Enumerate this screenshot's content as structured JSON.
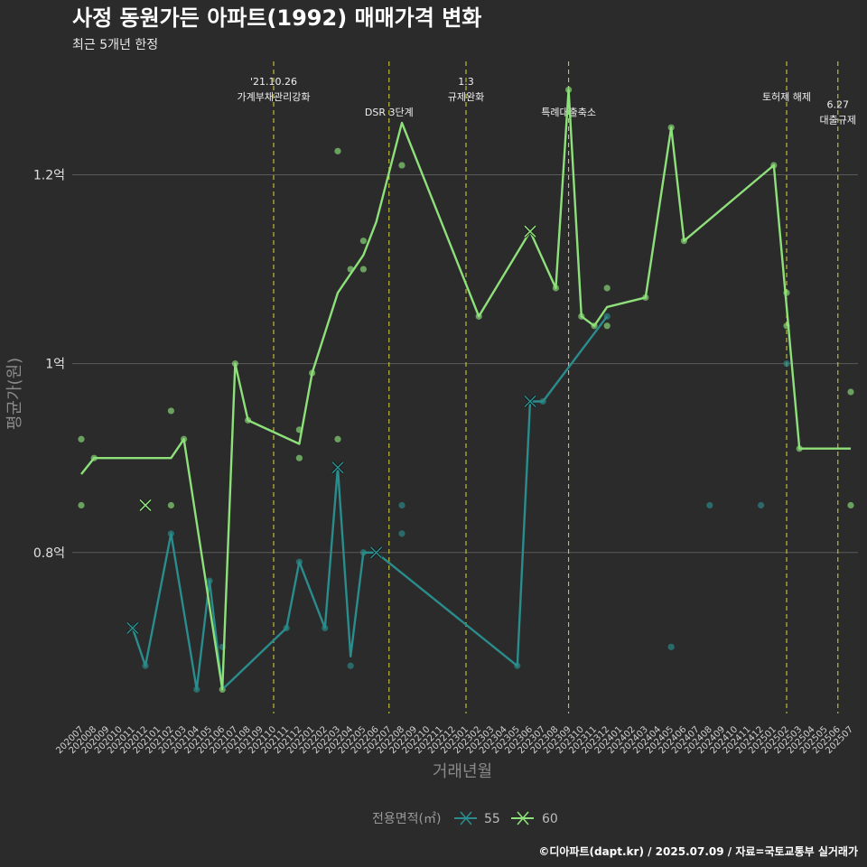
{
  "chart_data": {
    "type": "line",
    "title": "사정 동원가든 아파트(1992) 매매가격 변화",
    "subtitle": "최근 5개년 한정",
    "xlabel": "거래년월",
    "ylabel": "평균가(원)",
    "ylim": [
      0.62,
      1.32
    ],
    "yticks": [
      {
        "value": 0.8,
        "label": "0.8억"
      },
      {
        "value": 1.0,
        "label": "1억"
      },
      {
        "value": 1.2,
        "label": "1.2억"
      }
    ],
    "categories": [
      "202007",
      "202008",
      "202009",
      "202010",
      "202011",
      "202012",
      "202101",
      "202102",
      "202103",
      "202104",
      "202105",
      "202106",
      "202107",
      "202108",
      "202109",
      "202110",
      "202111",
      "202112",
      "202201",
      "202202",
      "202203",
      "202204",
      "202205",
      "202206",
      "202207",
      "202208",
      "202209",
      "202210",
      "202211",
      "202212",
      "202301",
      "202302",
      "202303",
      "202304",
      "202305",
      "202306",
      "202307",
      "202308",
      "202309",
      "202310",
      "202311",
      "202312",
      "202401",
      "202402",
      "202403",
      "202404",
      "202405",
      "202406",
      "202407",
      "202408",
      "202409",
      "202410",
      "202411",
      "202412",
      "202501",
      "202502",
      "202503",
      "202504",
      "202505",
      "202506",
      "202507"
    ],
    "legend": {
      "title": "전용면적(㎡)",
      "position": "bottom"
    },
    "grid": true,
    "series": [
      {
        "name": "55",
        "color": "#2a8c8c",
        "line": [
          {
            "x": "202011",
            "y": 0.72
          },
          {
            "x": "202012",
            "y": 0.68
          },
          {
            "x": "202102",
            "y": 0.82
          },
          {
            "x": "202104",
            "y": 0.655
          },
          {
            "x": "202105",
            "y": 0.77
          },
          {
            "x": "202106",
            "y": 0.655
          },
          {
            "x": "202111",
            "y": 0.72
          },
          {
            "x": "202112",
            "y": 0.79
          },
          {
            "x": "202202",
            "y": 0.72
          },
          {
            "x": "202203",
            "y": 0.89
          },
          {
            "x": "202204",
            "y": 0.69
          },
          {
            "x": "202205",
            "y": 0.8
          },
          {
            "x": "202206",
            "y": 0.8
          },
          {
            "x": "202305",
            "y": 0.68
          },
          {
            "x": "202306",
            "y": 0.96
          },
          {
            "x": "202307",
            "y": 0.96
          },
          {
            "x": "202312",
            "y": 1.05
          }
        ],
        "points": [
          {
            "x": "202011",
            "y": 0.72
          },
          {
            "x": "202012",
            "y": 0.68
          },
          {
            "x": "202102",
            "y": 0.82
          },
          {
            "x": "202104",
            "y": 0.655
          },
          {
            "x": "202105",
            "y": 0.77
          },
          {
            "x": "202106",
            "y": 0.7
          },
          {
            "x": "202111",
            "y": 0.72
          },
          {
            "x": "202112",
            "y": 0.79
          },
          {
            "x": "202202",
            "y": 0.72
          },
          {
            "x": "202204",
            "y": 0.68
          },
          {
            "x": "202205",
            "y": 0.8
          },
          {
            "x": "202208",
            "y": 0.85
          },
          {
            "x": "202208",
            "y": 0.82
          },
          {
            "x": "202305",
            "y": 0.68
          },
          {
            "x": "202307",
            "y": 0.96
          },
          {
            "x": "202312",
            "y": 1.05
          },
          {
            "x": "202405",
            "y": 0.7
          },
          {
            "x": "202408",
            "y": 0.85
          },
          {
            "x": "202412",
            "y": 0.85
          },
          {
            "x": "202502",
            "y": 1.0
          }
        ],
        "crosses": [
          {
            "x": "202011",
            "y": 0.72
          },
          {
            "x": "202203",
            "y": 0.89
          },
          {
            "x": "202206",
            "y": 0.8
          },
          {
            "x": "202306",
            "y": 0.96
          }
        ]
      },
      {
        "name": "60",
        "color": "#8ee07a",
        "line": [
          {
            "x": "202007",
            "y": 0.883
          },
          {
            "x": "202008",
            "y": 0.9
          },
          {
            "x": "202102",
            "y": 0.9
          },
          {
            "x": "202103",
            "y": 0.92
          },
          {
            "x": "202106",
            "y": 0.655
          },
          {
            "x": "202107",
            "y": 1.0
          },
          {
            "x": "202108",
            "y": 0.94
          },
          {
            "x": "202112",
            "y": 0.915
          },
          {
            "x": "202201",
            "y": 0.99
          },
          {
            "x": "202203",
            "y": 1.075
          },
          {
            "x": "202205",
            "y": 1.115
          },
          {
            "x": "202206",
            "y": 1.15
          },
          {
            "x": "202208",
            "y": 1.255
          },
          {
            "x": "202302",
            "y": 1.05
          },
          {
            "x": "202306",
            "y": 1.14
          },
          {
            "x": "202308",
            "y": 1.08
          },
          {
            "x": "202309",
            "y": 1.29
          },
          {
            "x": "202310",
            "y": 1.05
          },
          {
            "x": "202311",
            "y": 1.04
          },
          {
            "x": "202312",
            "y": 1.06
          },
          {
            "x": "202403",
            "y": 1.07
          },
          {
            "x": "202405",
            "y": 1.25
          },
          {
            "x": "202406",
            "y": 1.13
          },
          {
            "x": "202501",
            "y": 1.21
          },
          {
            "x": "202503",
            "y": 0.91
          },
          {
            "x": "202507",
            "y": 0.91
          }
        ],
        "points": [
          {
            "x": "202007",
            "y": 0.92
          },
          {
            "x": "202007",
            "y": 0.85
          },
          {
            "x": "202008",
            "y": 0.9
          },
          {
            "x": "202102",
            "y": 0.95
          },
          {
            "x": "202102",
            "y": 0.85
          },
          {
            "x": "202103",
            "y": 0.92
          },
          {
            "x": "202106",
            "y": 0.655
          },
          {
            "x": "202107",
            "y": 1.0
          },
          {
            "x": "202108",
            "y": 0.94
          },
          {
            "x": "202112",
            "y": 0.93
          },
          {
            "x": "202112",
            "y": 0.9
          },
          {
            "x": "202201",
            "y": 0.99
          },
          {
            "x": "202203",
            "y": 1.225
          },
          {
            "x": "202203",
            "y": 0.92
          },
          {
            "x": "202204",
            "y": 1.1
          },
          {
            "x": "202205",
            "y": 1.13
          },
          {
            "x": "202205",
            "y": 1.1
          },
          {
            "x": "202208",
            "y": 1.21
          },
          {
            "x": "202302",
            "y": 1.05
          },
          {
            "x": "202308",
            "y": 1.08
          },
          {
            "x": "202309",
            "y": 1.29
          },
          {
            "x": "202310",
            "y": 1.05
          },
          {
            "x": "202311",
            "y": 1.04
          },
          {
            "x": "202312",
            "y": 1.08
          },
          {
            "x": "202312",
            "y": 1.04
          },
          {
            "x": "202403",
            "y": 1.07
          },
          {
            "x": "202405",
            "y": 1.25
          },
          {
            "x": "202406",
            "y": 1.13
          },
          {
            "x": "202501",
            "y": 1.21
          },
          {
            "x": "202502",
            "y": 1.075
          },
          {
            "x": "202502",
            "y": 1.04
          },
          {
            "x": "202503",
            "y": 0.91
          },
          {
            "x": "202507",
            "y": 0.97
          },
          {
            "x": "202507",
            "y": 0.85
          }
        ],
        "crosses": [
          {
            "x": "202012",
            "y": 0.85
          },
          {
            "x": "202306",
            "y": 1.14
          }
        ]
      }
    ],
    "annotations": [
      {
        "x": "202110",
        "lines": [
          "'21.10.26",
          "가계부채관리강화"
        ],
        "row": 0
      },
      {
        "x": "202207",
        "lines": [
          "DSR 3단계"
        ],
        "row": 2
      },
      {
        "x": "202301",
        "lines": [
          "1.3",
          "규제완화"
        ],
        "row": 0
      },
      {
        "x": "202309",
        "lines": [
          "특례대출축소"
        ],
        "row": 2
      },
      {
        "x": "202502",
        "lines": [
          "토허제 해제"
        ],
        "row": 1
      },
      {
        "x": "202506",
        "lines": [
          "6.27",
          "대출규제"
        ],
        "row": 1.5
      }
    ]
  },
  "caption": "©디아파트(dapt.kr) / 2025.07.09 / 자료=국토교통부 실거래가"
}
